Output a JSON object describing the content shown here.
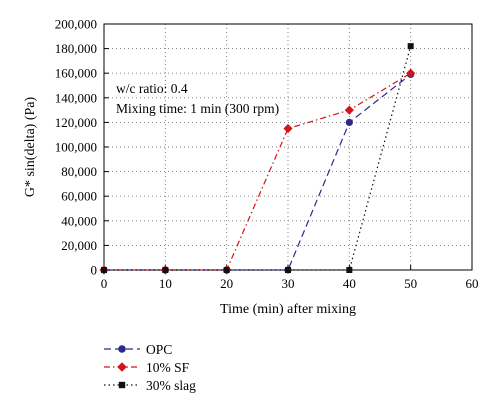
{
  "chart_data": {
    "type": "line",
    "title": "",
    "xlabel": "Time (min) after mixing",
    "ylabel": "G* sin(delta) (Pa)",
    "xlim": [
      0,
      60
    ],
    "ylim": [
      0,
      200000
    ],
    "x_ticks": [
      0,
      10,
      20,
      30,
      40,
      50,
      60
    ],
    "y_ticks": [
      0,
      20000,
      40000,
      60000,
      80000,
      100000,
      120000,
      140000,
      160000,
      180000,
      200000
    ],
    "x_tick_labels": [
      "0",
      "10",
      "20",
      "30",
      "40",
      "50",
      "60"
    ],
    "y_tick_labels": [
      "0",
      "20,000",
      "40,000",
      "60,000",
      "80,000",
      "100,000",
      "120,000",
      "140,000",
      "160,000",
      "180,000",
      "200,000"
    ],
    "grid": true,
    "legend_position": "bottom-left",
    "annotations": [
      "w/c ratio: 0.4",
      "Mixing time: 1 min (300 rpm)"
    ],
    "x": [
      0,
      10,
      20,
      30,
      40,
      50
    ],
    "series": [
      {
        "name": "OPC",
        "color": "#2b2a8e",
        "marker": "circle",
        "dash": "long-dash",
        "values": [
          0,
          0,
          0,
          0,
          120000,
          159000
        ]
      },
      {
        "name": "10% SF",
        "color": "#d4141c",
        "marker": "diamond",
        "dash": "dash-dot",
        "values": [
          0,
          0,
          0,
          115000,
          130000,
          160000
        ]
      },
      {
        "name": "30% slag",
        "color": "#111111",
        "marker": "square",
        "dash": "dotted",
        "values": [
          0,
          0,
          0,
          0,
          0,
          182000
        ]
      }
    ]
  }
}
